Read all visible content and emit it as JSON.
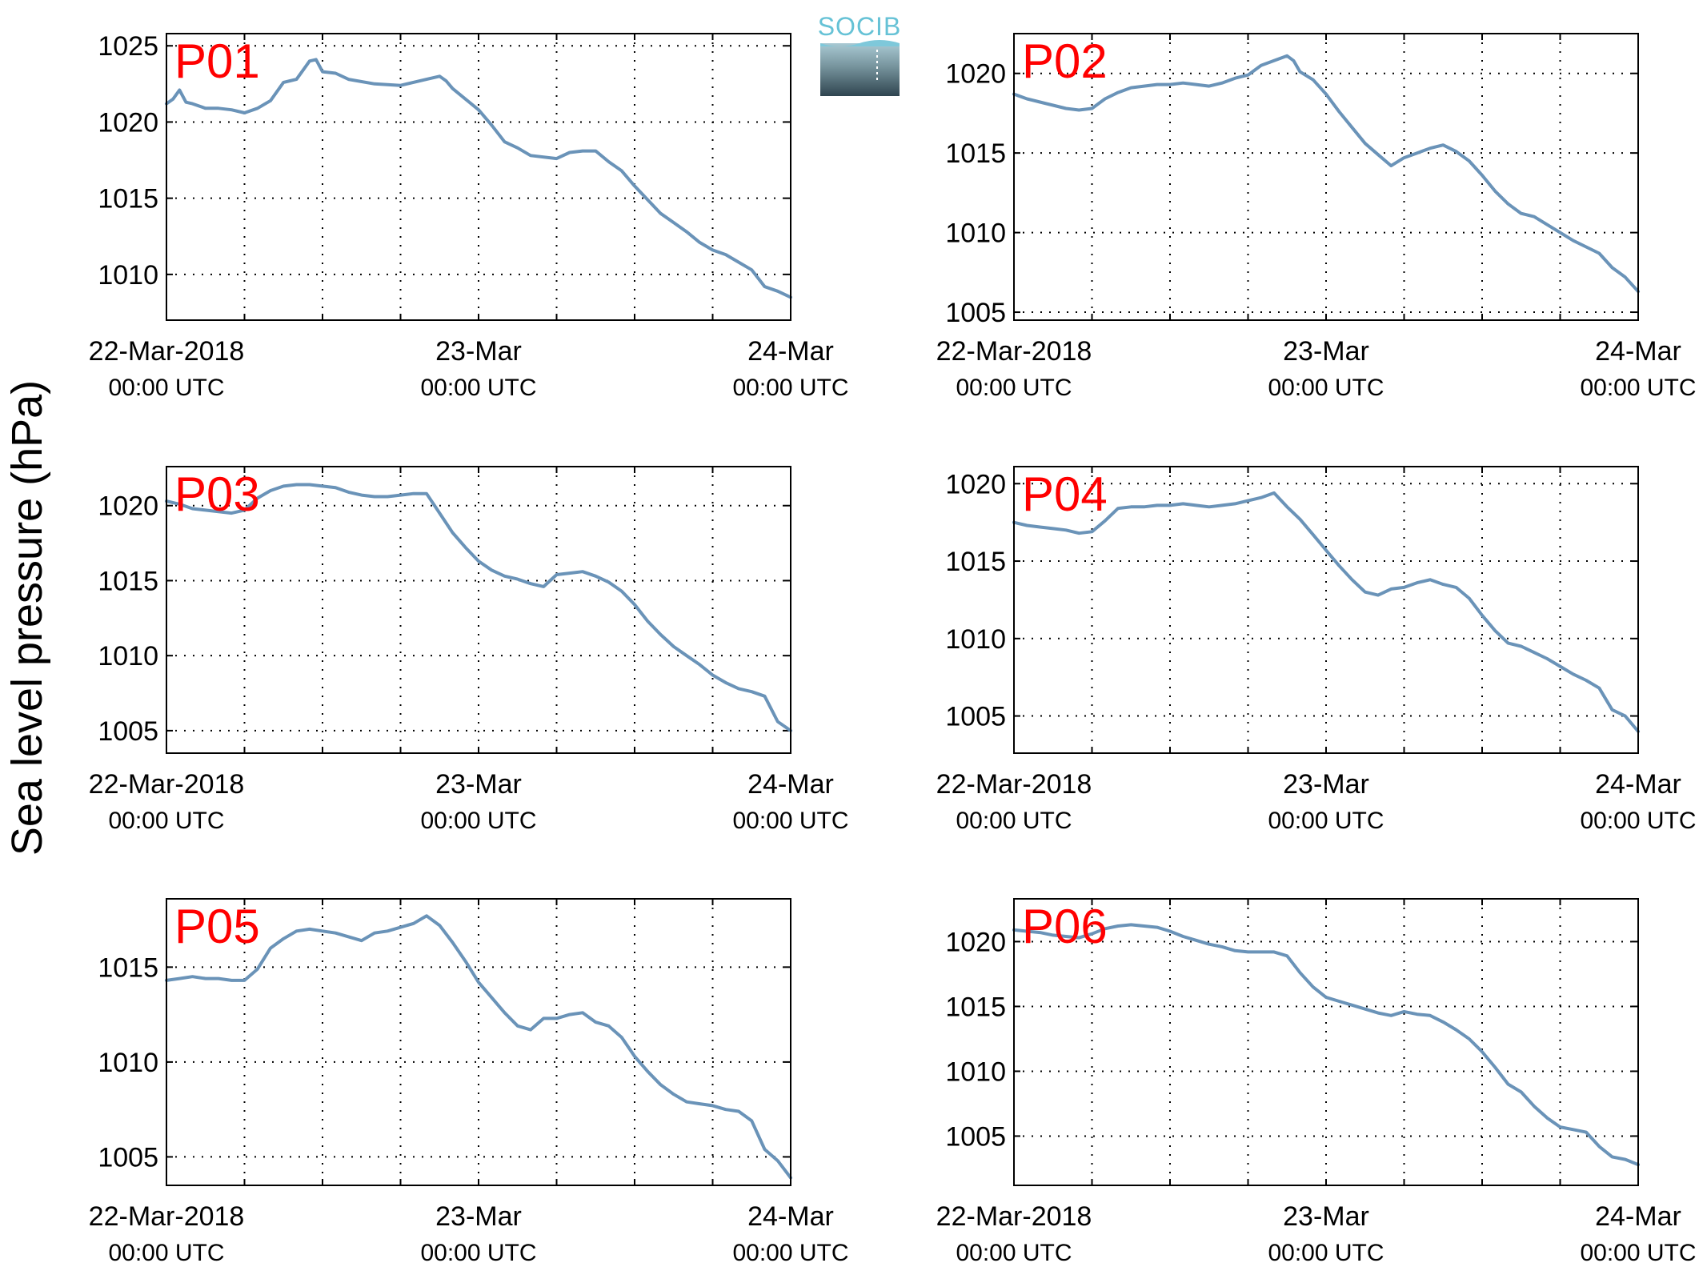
{
  "ylabel": "Sea level pressure (hPa)",
  "logo_text": "SOCIB",
  "xtick_labels": [
    {
      "line1": "22-Mar-2018",
      "line2": "00:00 UTC"
    },
    {
      "line1": "23-Mar",
      "line2": "00:00 UTC"
    },
    {
      "line1": "24-Mar",
      "line2": "00:00 UTC"
    }
  ],
  "colors": {
    "series": "#6a93b8",
    "panel_label": "#ff0000"
  },
  "chart_data": [
    {
      "type": "line",
      "label": "P01",
      "x_unit": "hours since 22-Mar-2018 00:00 UTC",
      "xlim": [
        0,
        48
      ],
      "ylim": [
        1007,
        1025.8
      ],
      "yticks": [
        1010,
        1015,
        1020,
        1025
      ],
      "grid": true,
      "x": [
        0,
        0.5,
        1,
        1.5,
        2,
        3,
        4,
        5,
        6,
        7,
        8,
        9,
        9.5,
        10,
        11,
        11.5,
        12,
        13,
        14,
        16,
        18,
        20,
        21,
        21.5,
        22,
        23,
        24,
        25,
        26,
        27,
        28,
        30,
        31,
        32,
        33,
        34,
        35,
        36,
        37,
        38,
        39,
        40,
        41,
        42,
        43,
        44,
        45,
        46,
        47,
        48
      ],
      "y": [
        1021.2,
        1021.5,
        1022.1,
        1021.3,
        1021.2,
        1020.9,
        1020.9,
        1020.8,
        1020.6,
        1020.9,
        1021.4,
        1022.6,
        1022.7,
        1022.8,
        1024.0,
        1024.1,
        1023.3,
        1023.2,
        1022.8,
        1022.5,
        1022.4,
        1022.8,
        1023.0,
        1022.7,
        1022.2,
        1021.5,
        1020.8,
        1019.8,
        1018.7,
        1018.3,
        1017.8,
        1017.6,
        1018.0,
        1018.1,
        1018.1,
        1017.4,
        1016.8,
        1015.8,
        1014.9,
        1014.0,
        1013.4,
        1012.8,
        1012.1,
        1011.6,
        1011.3,
        1010.8,
        1010.3,
        1009.2,
        1008.9,
        1008.5
      ]
    },
    {
      "type": "line",
      "label": "P02",
      "x_unit": "hours since 22-Mar-2018 00:00 UTC",
      "xlim": [
        0,
        48
      ],
      "ylim": [
        1004.5,
        1022.5
      ],
      "yticks": [
        1005,
        1010,
        1015,
        1020
      ],
      "grid": true,
      "x": [
        0,
        1,
        2,
        3,
        4,
        5,
        6,
        7,
        8,
        9,
        10,
        11,
        12,
        13,
        14,
        15,
        16,
        17,
        18,
        19,
        20,
        21,
        21.5,
        22,
        23,
        24,
        25,
        26,
        27,
        28,
        29,
        30,
        31,
        32,
        33,
        34,
        35,
        36,
        37,
        38,
        39,
        40,
        41,
        42,
        43,
        44,
        45,
        46,
        47,
        48
      ],
      "y": [
        1018.7,
        1018.4,
        1018.2,
        1018.0,
        1017.8,
        1017.7,
        1017.8,
        1018.4,
        1018.8,
        1019.1,
        1019.2,
        1019.3,
        1019.3,
        1019.4,
        1019.3,
        1019.2,
        1019.4,
        1019.7,
        1019.9,
        1020.5,
        1020.8,
        1021.1,
        1020.8,
        1020.1,
        1019.6,
        1018.7,
        1017.6,
        1016.6,
        1015.6,
        1014.9,
        1014.2,
        1014.7,
        1015.0,
        1015.3,
        1015.5,
        1015.1,
        1014.5,
        1013.6,
        1012.6,
        1011.8,
        1011.2,
        1011.0,
        1010.5,
        1010.0,
        1009.5,
        1009.1,
        1008.7,
        1007.8,
        1007.2,
        1006.3
      ]
    },
    {
      "type": "line",
      "label": "P03",
      "x_unit": "hours since 22-Mar-2018 00:00 UTC",
      "xlim": [
        0,
        48
      ],
      "ylim": [
        1003.5,
        1022.6
      ],
      "yticks": [
        1005,
        1010,
        1015,
        1020
      ],
      "grid": true,
      "x": [
        0,
        1,
        2,
        3,
        4,
        5,
        6,
        7,
        8,
        9,
        10,
        11,
        12,
        13,
        14,
        15,
        16,
        17,
        18,
        19,
        20,
        21,
        22,
        23,
        24,
        25,
        26,
        27,
        28,
        29,
        30,
        31,
        32,
        33,
        34,
        35,
        36,
        37,
        38,
        39,
        40,
        41,
        42,
        43,
        44,
        45,
        46,
        47,
        48
      ],
      "y": [
        1020.3,
        1020.1,
        1019.8,
        1019.7,
        1019.6,
        1019.5,
        1019.7,
        1020.5,
        1021.0,
        1021.3,
        1021.4,
        1021.4,
        1021.3,
        1021.2,
        1020.9,
        1020.7,
        1020.6,
        1020.6,
        1020.7,
        1020.8,
        1020.8,
        1019.5,
        1018.2,
        1017.2,
        1016.3,
        1015.7,
        1015.3,
        1015.1,
        1014.8,
        1014.6,
        1015.4,
        1015.5,
        1015.6,
        1015.3,
        1014.9,
        1014.3,
        1013.4,
        1012.3,
        1011.4,
        1010.6,
        1010.0,
        1009.4,
        1008.7,
        1008.2,
        1007.8,
        1007.6,
        1007.3,
        1005.6,
        1005.0
      ]
    },
    {
      "type": "line",
      "label": "P04",
      "x_unit": "hours since 22-Mar-2018 00:00 UTC",
      "xlim": [
        0,
        48
      ],
      "ylim": [
        1002.6,
        1021.1
      ],
      "yticks": [
        1005,
        1010,
        1015,
        1020
      ],
      "grid": true,
      "x": [
        0,
        1,
        2,
        3,
        4,
        5,
        6,
        7,
        8,
        9,
        10,
        11,
        12,
        13,
        14,
        15,
        16,
        17,
        18,
        19,
        20,
        21,
        22,
        23,
        24,
        25,
        26,
        27,
        28,
        29,
        30,
        31,
        32,
        33,
        34,
        35,
        36,
        37,
        38,
        39,
        40,
        41,
        42,
        43,
        44,
        45,
        46,
        47,
        48
      ],
      "y": [
        1017.5,
        1017.3,
        1017.2,
        1017.1,
        1017.0,
        1016.8,
        1016.9,
        1017.6,
        1018.4,
        1018.5,
        1018.5,
        1018.6,
        1018.6,
        1018.7,
        1018.6,
        1018.5,
        1018.6,
        1018.7,
        1018.9,
        1019.1,
        1019.4,
        1018.5,
        1017.7,
        1016.7,
        1015.7,
        1014.7,
        1013.8,
        1013.0,
        1012.8,
        1013.2,
        1013.3,
        1013.6,
        1013.8,
        1013.5,
        1013.3,
        1012.6,
        1011.5,
        1010.5,
        1009.7,
        1009.5,
        1009.1,
        1008.7,
        1008.2,
        1007.7,
        1007.3,
        1006.8,
        1005.4,
        1005.0,
        1004.0
      ]
    },
    {
      "type": "line",
      "label": "P05",
      "x_unit": "hours since 22-Mar-2018 00:00 UTC",
      "xlim": [
        0,
        48
      ],
      "ylim": [
        1003.5,
        1018.6
      ],
      "yticks": [
        1005,
        1010,
        1015
      ],
      "grid": true,
      "x": [
        0,
        1,
        2,
        3,
        4,
        5,
        6,
        7,
        8,
        9,
        10,
        11,
        12,
        13,
        14,
        15,
        16,
        17,
        18,
        19,
        20,
        21,
        22,
        23,
        24,
        25,
        26,
        27,
        28,
        29,
        30,
        31,
        32,
        33,
        34,
        35,
        36,
        37,
        38,
        39,
        40,
        41,
        42,
        43,
        44,
        45,
        46,
        47,
        48
      ],
      "y": [
        1014.3,
        1014.4,
        1014.5,
        1014.4,
        1014.4,
        1014.3,
        1014.3,
        1014.9,
        1016.0,
        1016.5,
        1016.9,
        1017.0,
        1016.9,
        1016.8,
        1016.6,
        1016.4,
        1016.8,
        1016.9,
        1017.1,
        1017.3,
        1017.7,
        1017.2,
        1016.3,
        1015.3,
        1014.2,
        1013.4,
        1012.6,
        1011.9,
        1011.7,
        1012.3,
        1012.3,
        1012.5,
        1012.6,
        1012.1,
        1011.9,
        1011.3,
        1010.3,
        1009.5,
        1008.8,
        1008.3,
        1007.9,
        1007.8,
        1007.7,
        1007.5,
        1007.4,
        1006.9,
        1005.4,
        1004.8,
        1003.9
      ]
    },
    {
      "type": "line",
      "label": "P06",
      "x_unit": "hours since 22-Mar-2018 00:00 UTC",
      "xlim": [
        0,
        48
      ],
      "ylim": [
        1001.2,
        1023.3
      ],
      "yticks": [
        1005,
        1010,
        1015,
        1020
      ],
      "grid": true,
      "x": [
        0,
        1,
        2,
        3,
        4,
        5,
        6,
        7,
        8,
        9,
        10,
        11,
        12,
        13,
        14,
        15,
        16,
        17,
        18,
        19,
        20,
        21,
        22,
        23,
        24,
        25,
        26,
        27,
        28,
        29,
        30,
        31,
        32,
        33,
        34,
        35,
        36,
        37,
        38,
        39,
        40,
        41,
        42,
        43,
        44,
        45,
        46,
        47,
        48
      ],
      "y": [
        1020.9,
        1020.8,
        1020.7,
        1020.5,
        1020.4,
        1020.3,
        1020.6,
        1021.0,
        1021.2,
        1021.3,
        1021.2,
        1021.1,
        1020.8,
        1020.4,
        1020.1,
        1019.8,
        1019.6,
        1019.3,
        1019.2,
        1019.2,
        1019.2,
        1018.9,
        1017.6,
        1016.5,
        1015.7,
        1015.4,
        1015.1,
        1014.8,
        1014.5,
        1014.3,
        1014.6,
        1014.4,
        1014.3,
        1013.8,
        1013.2,
        1012.5,
        1011.5,
        1010.3,
        1009.0,
        1008.4,
        1007.3,
        1006.4,
        1005.7,
        1005.5,
        1005.3,
        1004.2,
        1003.4,
        1003.2,
        1002.8
      ]
    }
  ]
}
